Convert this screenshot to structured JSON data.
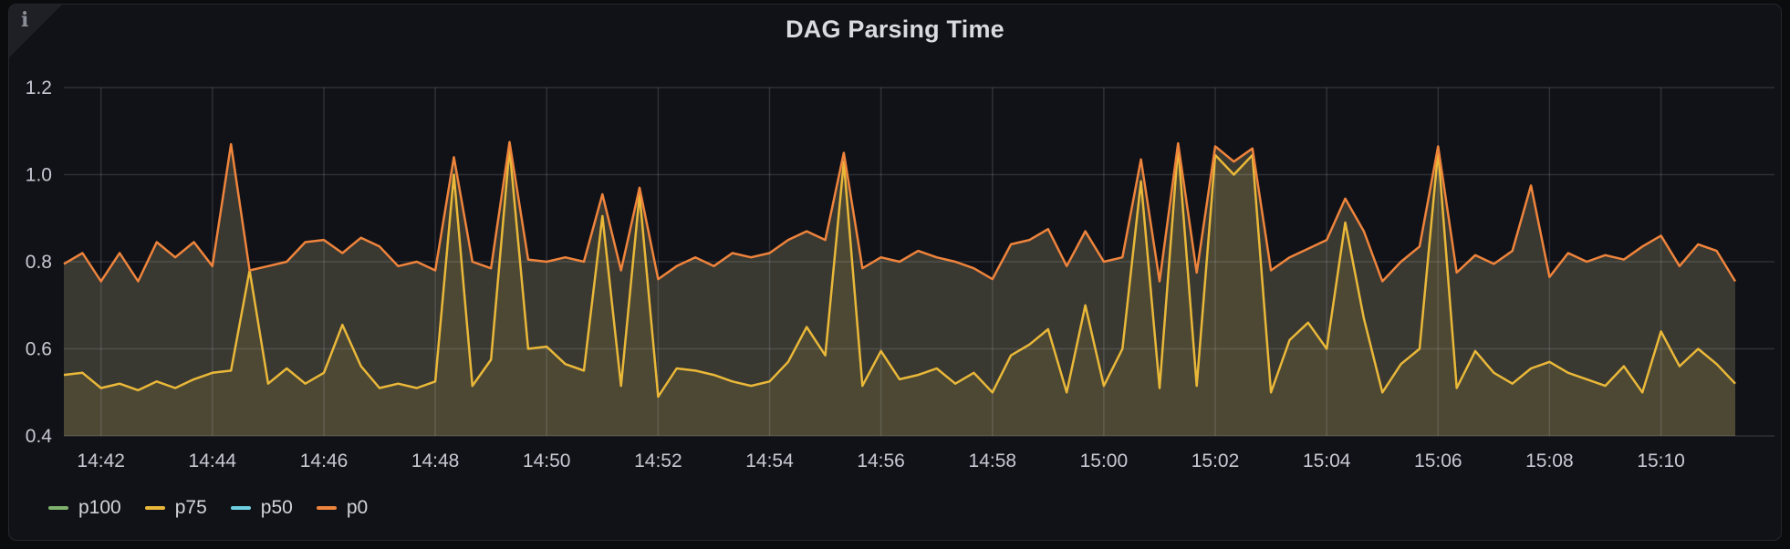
{
  "panel": {
    "title": "DAG Parsing Time",
    "info_icon": "i"
  },
  "colors": {
    "page_background": "#0b0c0e",
    "panel_background": "#111217",
    "panel_border": "#25272c",
    "grid": "rgba(204,204,220,0.16)",
    "tick_text": "#c7c8d2",
    "title_text": "#dadbe0"
  },
  "chart_data": {
    "type": "line",
    "title": "DAG Parsing Time",
    "grid": true,
    "legend_position": "bottom-left",
    "x_axis": {
      "start": "14:41:20",
      "step_seconds": 20,
      "tick_labels": [
        "14:42",
        "14:44",
        "14:46",
        "14:48",
        "14:50",
        "14:52",
        "14:54",
        "14:56",
        "14:58",
        "15:00",
        "15:02",
        "15:04",
        "15:06",
        "15:08",
        "15:10"
      ],
      "tick_indices": [
        2,
        8,
        14,
        20,
        26,
        32,
        38,
        44,
        50,
        56,
        62,
        68,
        74,
        80,
        86
      ]
    },
    "y_axis": {
      "min": 0.4,
      "max": 1.2,
      "tick_values": [
        0.4,
        0.6,
        0.8,
        1.0,
        1.2
      ],
      "tick_labels": [
        "0.4",
        "0.6",
        "0.8",
        "1.0",
        "1.2"
      ]
    },
    "series": [
      {
        "name": "p100",
        "color": "#7EB26D",
        "visible": false,
        "values": []
      },
      {
        "name": "p75",
        "color": "#EAB839",
        "fill": "#4C4834",
        "visible": true,
        "values": [
          0.54,
          0.545,
          0.51,
          0.52,
          0.505,
          0.525,
          0.51,
          0.53,
          0.545,
          0.55,
          0.78,
          0.52,
          0.555,
          0.52,
          0.545,
          0.655,
          0.56,
          0.51,
          0.52,
          0.51,
          0.525,
          1.0,
          0.515,
          0.575,
          1.06,
          0.6,
          0.605,
          0.565,
          0.55,
          0.905,
          0.515,
          0.955,
          0.49,
          0.555,
          0.55,
          0.54,
          0.525,
          0.515,
          0.525,
          0.57,
          0.65,
          0.585,
          1.03,
          0.515,
          0.595,
          0.53,
          0.54,
          0.555,
          0.52,
          0.545,
          0.5,
          0.585,
          0.61,
          0.645,
          0.5,
          0.7,
          0.515,
          0.6,
          0.985,
          0.51,
          1.065,
          0.515,
          1.045,
          1.0,
          1.045,
          0.5,
          0.62,
          0.66,
          0.6,
          0.89,
          0.67,
          0.5,
          0.565,
          0.6,
          1.055,
          0.51,
          0.595,
          0.545,
          0.52,
          0.555,
          0.57,
          0.545,
          0.53,
          0.515,
          0.56,
          0.5,
          0.64,
          0.56,
          0.6,
          0.565,
          0.52
        ]
      },
      {
        "name": "p50",
        "color": "#6ED0E0",
        "visible": false,
        "values": []
      },
      {
        "name": "p0",
        "color": "#EF843C",
        "fill": "#393831",
        "visible": true,
        "values": [
          0.795,
          0.82,
          0.755,
          0.82,
          0.755,
          0.845,
          0.81,
          0.845,
          0.79,
          1.07,
          0.78,
          0.79,
          0.8,
          0.845,
          0.85,
          0.82,
          0.855,
          0.835,
          0.79,
          0.8,
          0.78,
          1.04,
          0.8,
          0.785,
          1.075,
          0.805,
          0.8,
          0.81,
          0.8,
          0.955,
          0.78,
          0.97,
          0.76,
          0.79,
          0.81,
          0.79,
          0.82,
          0.81,
          0.82,
          0.85,
          0.87,
          0.85,
          1.05,
          0.785,
          0.81,
          0.8,
          0.825,
          0.81,
          0.8,
          0.785,
          0.76,
          0.84,
          0.85,
          0.875,
          0.79,
          0.87,
          0.8,
          0.81,
          1.035,
          0.755,
          1.072,
          0.775,
          1.065,
          1.03,
          1.06,
          0.78,
          0.81,
          0.83,
          0.85,
          0.945,
          0.87,
          0.755,
          0.8,
          0.835,
          1.065,
          0.775,
          0.815,
          0.795,
          0.825,
          0.975,
          0.765,
          0.82,
          0.8,
          0.815,
          0.805,
          0.835,
          0.86,
          0.79,
          0.84,
          0.825,
          0.755
        ]
      }
    ]
  }
}
